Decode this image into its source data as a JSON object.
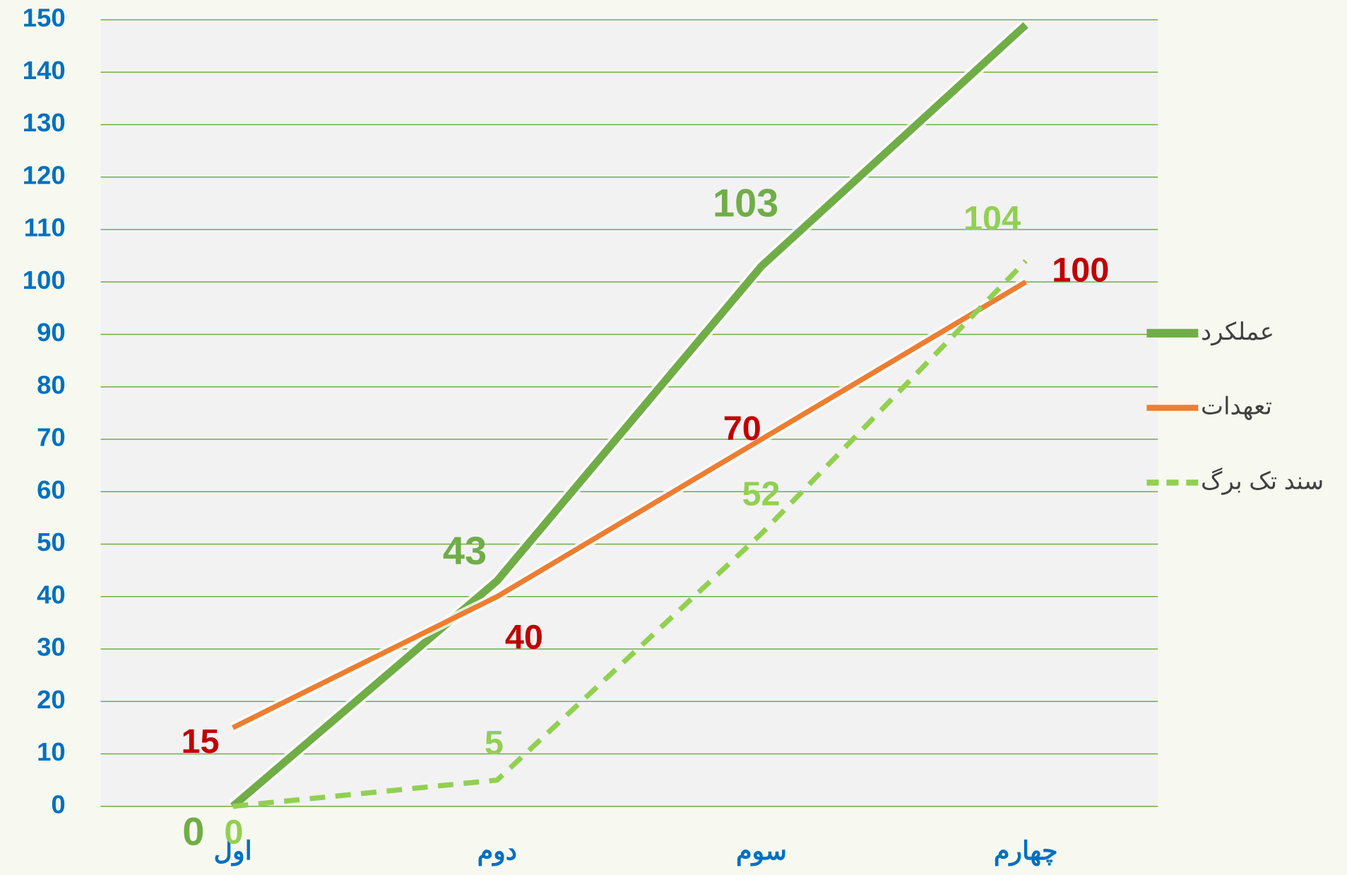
{
  "chart_data": {
    "type": "line",
    "categories": [
      "اول",
      "دوم",
      "سوم",
      "چهارم"
    ],
    "series": [
      {
        "name": "عملکرد",
        "color": "#70ad47",
        "values": [
          0,
          43,
          103,
          149
        ],
        "value_labels": [
          "0",
          "43",
          "103",
          null
        ],
        "label_color": "#70ad47",
        "dashed": false,
        "width": 9
      },
      {
        "name": "تعهدات",
        "color": "#ed7d31",
        "values": [
          15,
          40,
          70,
          100
        ],
        "value_labels": [
          "15",
          "40",
          "70",
          "100"
        ],
        "label_color": "#c00000",
        "dashed": false,
        "width": 6
      },
      {
        "name": "سند تک برگ",
        "color": "#92d050",
        "values": [
          0,
          5,
          52,
          104
        ],
        "value_labels": [
          "0",
          "5",
          "52",
          "104"
        ],
        "label_color": "#92d050",
        "dashed": true,
        "width": 6
      }
    ],
    "ylim": [
      0,
      150
    ],
    "yticks": [
      0,
      10,
      20,
      30,
      40,
      50,
      60,
      70,
      80,
      90,
      100,
      110,
      120,
      130,
      140,
      150
    ],
    "grid": true,
    "legend": "right"
  }
}
